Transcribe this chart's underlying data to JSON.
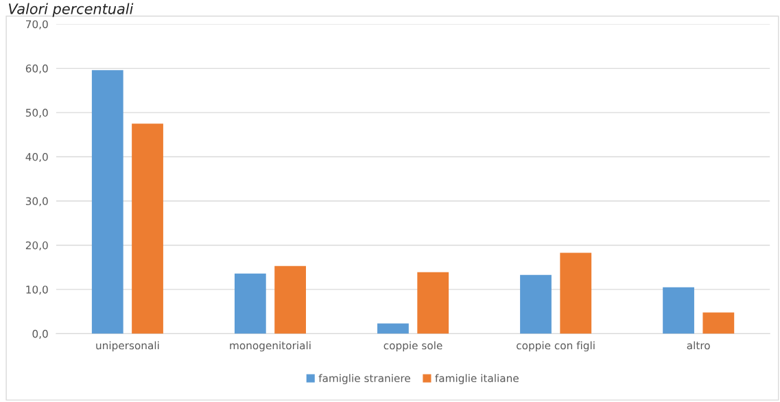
{
  "chart_data": {
    "type": "bar",
    "title": "Valori percentuali",
    "categories": [
      "unipersonali",
      "monogenitoriali",
      "coppie sole",
      "coppie con figli",
      "altro"
    ],
    "series": [
      {
        "name": "famiglie straniere",
        "color": "#5b9bd5",
        "values": [
          59.6,
          13.6,
          2.3,
          13.3,
          10.5
        ]
      },
      {
        "name": "famiglie italiane",
        "color": "#ed7d31",
        "values": [
          47.5,
          15.3,
          13.9,
          18.3,
          4.8
        ]
      }
    ],
    "ylim": [
      0,
      70
    ],
    "yticks": [
      {
        "value": 0,
        "label": "0,0"
      },
      {
        "value": 10,
        "label": "10,0"
      },
      {
        "value": 20,
        "label": "20,0"
      },
      {
        "value": 30,
        "label": "30,0"
      },
      {
        "value": 40,
        "label": "40,0"
      },
      {
        "value": 50,
        "label": "50,0"
      },
      {
        "value": 60,
        "label": "60,0"
      },
      {
        "value": 70,
        "label": "70,0"
      }
    ],
    "grid": "y",
    "legend": "bottom"
  }
}
